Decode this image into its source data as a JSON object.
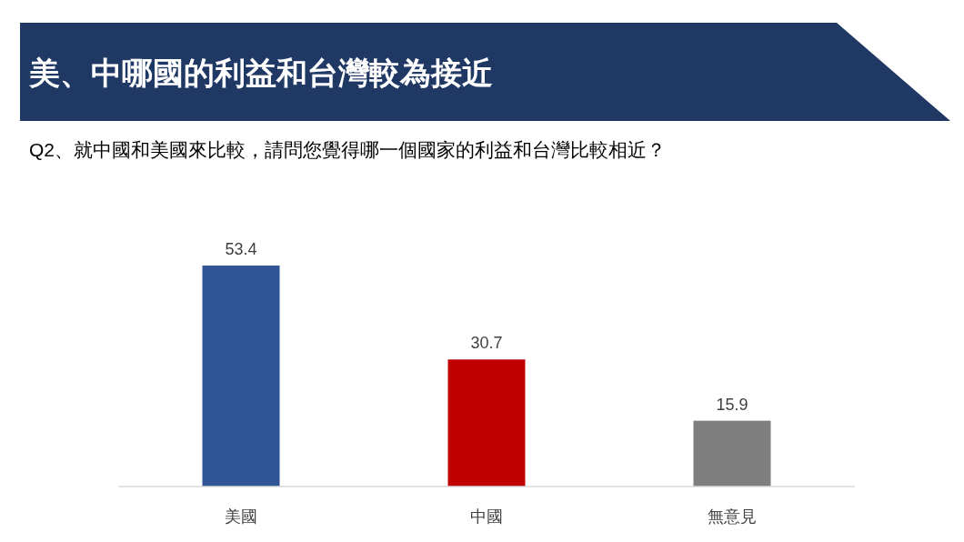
{
  "chart_data": {
    "type": "bar",
    "title": "美、中哪國的利益和台灣較為接近",
    "subtitle": "Q2、就中國和美國來比較，請問您覺得哪一個國家的利益和台灣比較相近？",
    "categories": [
      "美國",
      "中國",
      "無意見"
    ],
    "values": [
      53.4,
      30.7,
      15.9
    ],
    "colors": [
      "#2f5597",
      "#c00000",
      "#7f7f7f"
    ],
    "data_labels": true
  }
}
